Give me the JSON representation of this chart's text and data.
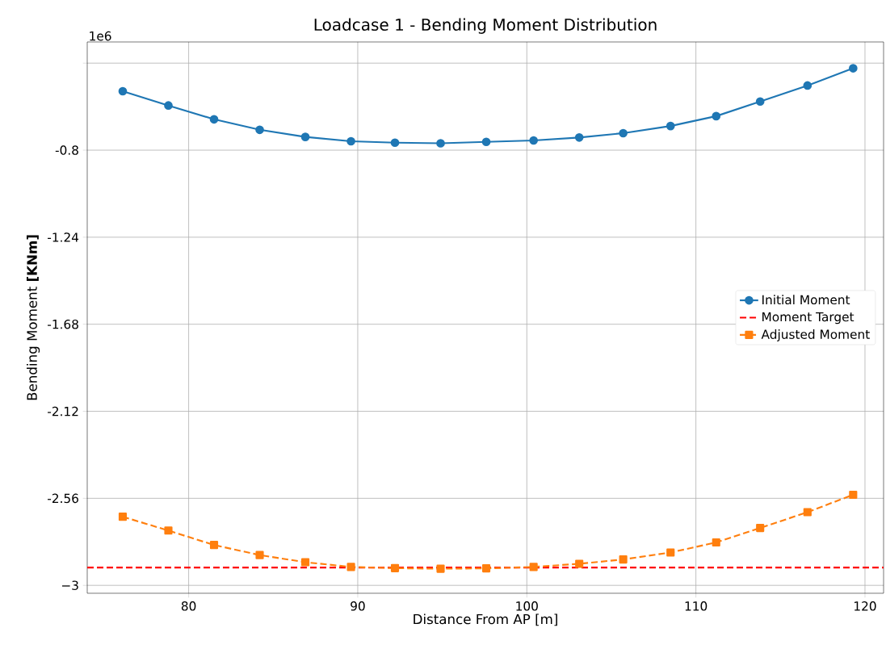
{
  "chart_data": {
    "type": "line",
    "title": "Loadcase 1 - Bending Moment Distribution",
    "xlabel": "Distance From AP [m]",
    "ylabel": "Bending Moment  **[KNm]**",
    "annotations": [
      "1e6"
    ],
    "x": [
      76.1,
      78.8,
      81.5,
      84.2,
      86.9,
      89.6,
      92.2,
      94.9,
      97.6,
      100.4,
      103.1,
      105.7,
      108.5,
      111.2,
      113.8,
      116.6,
      119.3
    ],
    "series": [
      {
        "name": "Initial Moment",
        "color": "#1f77b4",
        "marker": "circle",
        "line_style": "solid",
        "values": [
          -0.502,
          -0.574,
          -0.644,
          -0.697,
          -0.733,
          -0.755,
          -0.762,
          -0.765,
          -0.758,
          -0.751,
          -0.736,
          -0.714,
          -0.678,
          -0.628,
          -0.554,
          -0.473,
          -0.386
        ]
      },
      {
        "name": "Adjusted Moment",
        "color": "#ff7f0e",
        "marker": "square",
        "line_style": "dashed",
        "values": [
          -2.653,
          -2.723,
          -2.796,
          -2.847,
          -2.883,
          -2.907,
          -2.913,
          -2.916,
          -2.914,
          -2.907,
          -2.891,
          -2.869,
          -2.834,
          -2.783,
          -2.71,
          -2.63,
          -2.542
        ]
      }
    ],
    "ref_lines": [
      {
        "axis": "y",
        "value": -2.91,
        "label": "Moment Target",
        "color": "#ff0000",
        "line_style": "dashed"
      }
    ],
    "xlim": [
      74.0,
      121.1
    ],
    "ylim": [
      -3.04,
      -0.253
    ],
    "xticks": [
      80,
      90,
      100,
      110,
      120
    ],
    "yticks": [
      {
        "value": -0.36,
        "label": null
      },
      {
        "value": -0.8,
        "label": "-0.8"
      },
      {
        "value": -1.24,
        "label": "-1.24"
      },
      {
        "value": -1.68,
        "label": "-1.68"
      },
      {
        "value": -2.12,
        "label": "-2.12"
      },
      {
        "value": -2.56,
        "label": "-2.56"
      },
      {
        "value": -3,
        "label": "−3"
      }
    ],
    "grid": true,
    "legend": "right"
  }
}
